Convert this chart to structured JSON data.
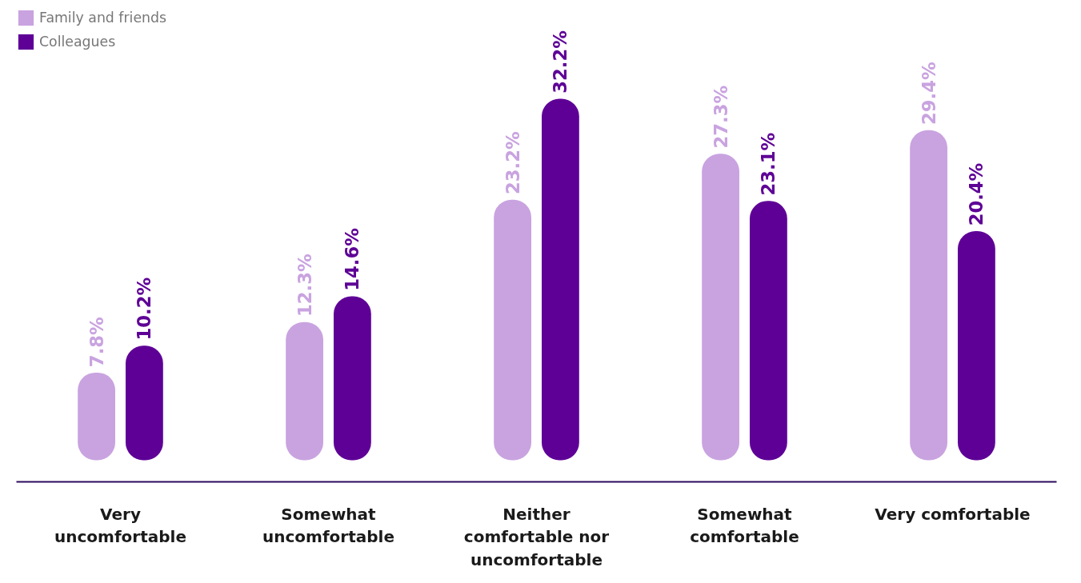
{
  "chart_data": {
    "type": "bar",
    "categories": [
      "Very uncomfortable",
      "Somewhat uncomfortable",
      "Neither comfortable nor uncomfortable",
      "Somewhat comfortable",
      "Very comfortable"
    ],
    "series": [
      {
        "name": "Family and friends",
        "color": "#c9a3e0",
        "values": [
          7.8,
          12.3,
          23.2,
          27.3,
          29.4
        ],
        "value_labels": [
          "7.8%",
          "12.3%",
          "23.2%",
          "27.3%",
          "29.4%"
        ]
      },
      {
        "name": "Colleagues",
        "color": "#5e0096",
        "values": [
          10.2,
          14.6,
          32.2,
          23.1,
          20.4
        ],
        "value_labels": [
          "10.2%",
          "14.6%",
          "32.2%",
          "23.1%",
          "20.4%"
        ]
      }
    ],
    "legend": "top left",
    "grid": false
  }
}
